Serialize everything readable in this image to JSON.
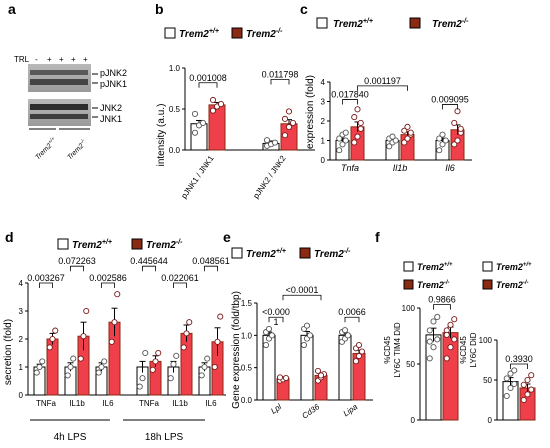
{
  "colors": {
    "wt": "#ffffff",
    "ko": "#8b2a12",
    "ko_light": "#ef3f4a",
    "dot_face": "#ffffff",
    "axis": "#000000"
  },
  "legend": {
    "wt": "Trem2",
    "wt_sup": "+/+",
    "ko": "Trem2",
    "ko_sup": "-/-"
  },
  "chart_data": [
    {
      "panel": "a",
      "type": "blot",
      "lane_label": "TRL",
      "lanes": [
        "-",
        "+",
        "+",
        "+",
        "+"
      ],
      "bands_top": [
        "pJNK2",
        "pJNK1"
      ],
      "bands_bottom": [
        "JNK2",
        "JNK1"
      ],
      "groups": [
        {
          "name": "Trem2",
          "sup": "+/+"
        },
        {
          "name": "Trem2",
          "sup": "-/-"
        }
      ]
    },
    {
      "panel": "b",
      "type": "bar",
      "ylabel": "intensity (a.u.)",
      "ylim": [
        0,
        1.0
      ],
      "yticks": [
        "0.0",
        "0.5",
        "1.0"
      ],
      "categories": [
        "pJNK1 / JNK1",
        "pJNK2 / JNK2"
      ],
      "series": [
        {
          "name": "Trem2+/+",
          "values": [
            0.32,
            0.08
          ],
          "err": [
            0.04,
            0.03
          ],
          "points": [
            [
              0.21,
              0.3,
              0.33,
              0.44
            ],
            [
              0.05,
              0.07,
              0.09,
              0.12
            ]
          ]
        },
        {
          "name": "Trem2-/-",
          "values": [
            0.55,
            0.32
          ],
          "err": [
            0.03,
            0.05
          ],
          "points": [
            [
              0.48,
              0.53,
              0.56,
              0.61
            ],
            [
              0.18,
              0.28,
              0.33,
              0.38,
              0.47
            ]
          ]
        }
      ],
      "pvalues": [
        {
          "text": "0.001008",
          "from": [
            0,
            0
          ],
          "to": [
            0,
            1
          ],
          "level": 0.82
        },
        {
          "text": "0.011798",
          "from": [
            1,
            0
          ],
          "to": [
            1,
            1
          ],
          "level": 0.86
        }
      ]
    },
    {
      "panel": "c",
      "type": "bar",
      "ylabel": "expression (fold)",
      "ylim": [
        0,
        4
      ],
      "yticks": [
        "0",
        "1",
        "2",
        "3",
        "4"
      ],
      "categories": [
        "Tnfa",
        "Il1b",
        "Il6"
      ],
      "series": [
        {
          "name": "Trem2+/+",
          "values": [
            1.0,
            1.0,
            1.0
          ],
          "err": [
            0.12,
            0.08,
            0.12
          ],
          "points": [
            [
              0.5,
              0.8,
              1.0,
              1.1,
              1.3,
              1.4
            ],
            [
              0.7,
              0.9,
              1.0,
              1.1,
              1.2
            ],
            [
              0.5,
              0.8,
              1.0,
              1.1,
              1.3
            ]
          ]
        },
        {
          "name": "Trem2-/-",
          "values": [
            1.7,
            1.3,
            1.55
          ],
          "err": [
            0.25,
            0.15,
            0.25
          ],
          "points": [
            [
              0.9,
              1.2,
              1.6,
              2.2,
              2.6,
              1.9
            ],
            [
              0.9,
              1.1,
              1.3,
              1.5,
              1.7,
              1.4
            ],
            [
              0.8,
              1.0,
              1.4,
              1.9,
              2.5,
              1.6
            ]
          ]
        }
      ],
      "pvalues": [
        {
          "text": "0.017840",
          "from": [
            0,
            0
          ],
          "to": [
            0,
            1
          ],
          "level": 3.1
        },
        {
          "text": "0.001197",
          "from": [
            0,
            1
          ],
          "to": [
            1,
            1
          ],
          "level": 3.8
        },
        {
          "text": "0.009095",
          "from": [
            2,
            0
          ],
          "to": [
            2,
            1
          ],
          "level": 2.85
        }
      ]
    },
    {
      "panel": "d",
      "type": "bar",
      "ylabel": "secretion (fold)",
      "ylim": [
        0,
        4
      ],
      "yticks": [
        "0",
        "1",
        "2",
        "3",
        "4"
      ],
      "categories": [
        "TNFa",
        "IL1b",
        "IL6",
        "TNFa",
        "IL1b",
        "IL6"
      ],
      "group_labels": [
        "4h LPS",
        "18h LPS"
      ],
      "series": [
        {
          "name": "Trem2+/+",
          "values": [
            1.0,
            1.0,
            1.0,
            1.0,
            1.0,
            1.0
          ],
          "err": [
            0.1,
            0.15,
            0.15,
            0.2,
            0.2,
            0.15
          ],
          "points": [
            [
              0.8,
              1.0,
              1.2
            ],
            [
              0.7,
              1.0,
              1.3
            ],
            [
              0.8,
              1.0,
              1.2
            ],
            [
              0.3,
              0.6,
              1.5
            ],
            [
              0.6,
              1.1,
              1.4
            ],
            [
              0.7,
              1.0,
              1.3
            ]
          ]
        },
        {
          "name": "Trem2-/-",
          "values": [
            2.0,
            2.1,
            2.6,
            1.2,
            2.2,
            1.9
          ],
          "err": [
            0.2,
            0.5,
            0.5,
            0.2,
            0.3,
            0.5
          ],
          "points": [
            [
              1.7,
              2.0,
              2.3
            ],
            [
              1.3,
              2.1,
              3.0
            ],
            [
              1.9,
              2.6,
              3.6
            ],
            [
              0.9,
              1.2,
              1.5
            ],
            [
              1.7,
              2.2,
              2.6
            ],
            [
              1.0,
              1.9,
              2.8
            ]
          ]
        }
      ],
      "pvalues": [
        {
          "text": "0.003267",
          "from": [
            0,
            0
          ],
          "to": [
            0,
            1
          ],
          "level": 4.0
        },
        {
          "text": "0.072263",
          "from": [
            1,
            0
          ],
          "to": [
            1,
            1
          ],
          "level": 4.6
        },
        {
          "text": "0.002586",
          "from": [
            2,
            0
          ],
          "to": [
            2,
            1
          ],
          "level": 4.0
        },
        {
          "text": "0.445644",
          "from": [
            3,
            0
          ],
          "to": [
            3,
            1
          ],
          "level": 4.6
        },
        {
          "text": "0.022061",
          "from": [
            4,
            0
          ],
          "to": [
            4,
            1
          ],
          "level": 4.0
        },
        {
          "text": "0.048561",
          "from": [
            5,
            0
          ],
          "to": [
            5,
            1
          ],
          "level": 4.6
        }
      ]
    },
    {
      "panel": "e",
      "type": "bar",
      "ylabel": "Gene expression (fold/tbp)",
      "ylim": [
        0,
        1.5
      ],
      "yticks": [
        "0.0",
        "0.5",
        "1.0",
        "1.5"
      ],
      "categories": [
        "Lpl",
        "Cd36",
        "Lipa"
      ],
      "series": [
        {
          "name": "Trem2+/+",
          "values": [
            1.0,
            1.0,
            1.0
          ],
          "err": [
            0.05,
            0.06,
            0.04
          ],
          "points": [
            [
              0.85,
              0.95,
              1.0,
              1.05,
              1.1
            ],
            [
              0.85,
              0.95,
              1.0,
              1.1,
              1.15
            ],
            [
              0.9,
              0.95,
              1.0,
              1.05,
              1.08
            ]
          ]
        },
        {
          "name": "Trem2-/-",
          "values": [
            0.33,
            0.38,
            0.72
          ],
          "err": [
            0.02,
            0.04,
            0.05
          ],
          "points": [
            [
              0.3,
              0.32,
              0.34,
              0.35
            ],
            [
              0.3,
              0.35,
              0.4,
              0.45,
              0.38
            ],
            [
              0.6,
              0.68,
              0.75,
              0.8,
              0.85
            ]
          ]
        }
      ],
      "pvalues": [
        {
          "text": "<0.000",
          "text2": "1",
          "from": [
            0,
            0
          ],
          "to": [
            0,
            1
          ],
          "level": 1.28
        },
        {
          "text": "<0.0001",
          "from": [
            0,
            1
          ],
          "to": [
            1,
            1
          ],
          "level": 1.62
        },
        {
          "text": "0.0066",
          "from": [
            2,
            0
          ],
          "to": [
            2,
            1
          ],
          "level": 1.28
        }
      ]
    },
    {
      "panel": "f1",
      "type": "bar",
      "ylabel_line1": "%CD45",
      "ylabel_line2": "LY6C TIM4 DiD",
      "ylim": [
        0,
        100
      ],
      "yticks": [
        "0",
        "50",
        "100"
      ],
      "categories": [
        ""
      ],
      "series": [
        {
          "name": "Trem2+/+",
          "values": [
            76
          ],
          "err": [
            6
          ],
          "points": [
            [
              55,
              65,
              72,
              80,
              88,
              92,
              70
            ]
          ]
        },
        {
          "name": "Trem2-/-",
          "values": [
            78
          ],
          "err": [
            5
          ],
          "points": [
            [
              55,
              65,
              72,
              80,
              85,
              90,
              76
            ]
          ]
        }
      ],
      "pvalues": [
        {
          "text": "0.9866",
          "from": [
            0,
            0
          ],
          "to": [
            0,
            1
          ],
          "level": 103
        }
      ]
    },
    {
      "panel": "f2",
      "type": "bar",
      "ylabel_line1": "%CD45",
      "ylabel_line2": "LY6C DiD",
      "ylim": [
        0,
        100
      ],
      "yticks": [
        "0",
        "50",
        "100"
      ],
      "categories": [
        ""
      ],
      "series": [
        {
          "name": "Trem2+/+",
          "values": [
            48
          ],
          "err": [
            5
          ],
          "points": [
            [
              30,
              40,
              45,
              52,
              58,
              62
            ]
          ]
        },
        {
          "name": "Trem2-/-",
          "values": [
            40
          ],
          "err": [
            5
          ],
          "points": [
            [
              25,
              32,
              38,
              44,
              50,
              56
            ]
          ]
        }
      ],
      "pvalues": [
        {
          "text": "0.3930",
          "from": [
            0,
            0
          ],
          "to": [
            0,
            1
          ],
          "level": 70
        }
      ]
    }
  ],
  "panel_letters": [
    "a",
    "b",
    "c",
    "d",
    "e",
    "f"
  ]
}
